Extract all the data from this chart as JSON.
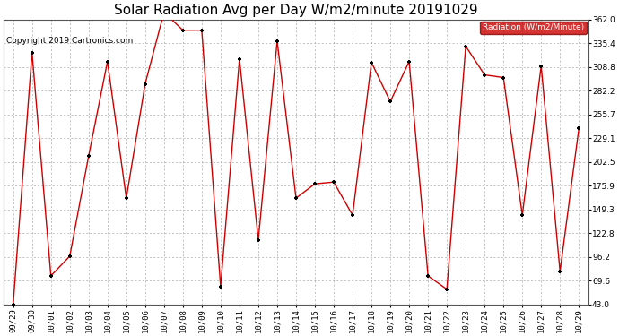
{
  "title": "Solar Radiation Avg per Day W/m2/minute 20191029",
  "copyright": "Copyright 2019 Cartronics.com",
  "legend_label": "Radiation (W/m2/Minute)",
  "labels": [
    "09/29",
    "09/30",
    "10/01",
    "10/02",
    "10/03",
    "10/04",
    "10/05",
    "10/06",
    "10/07",
    "10/08",
    "10/09",
    "10/10",
    "10/11",
    "10/12",
    "10/13",
    "10/14",
    "10/15",
    "10/16",
    "10/17",
    "10/18",
    "10/19",
    "10/20",
    "10/21",
    "10/22",
    "10/23",
    "10/24",
    "10/25",
    "10/26",
    "10/27",
    "10/28",
    "10/29"
  ],
  "values": [
    43.0,
    325.0,
    75.0,
    97.0,
    209.0,
    315.0,
    162.0,
    290.0,
    370.0,
    350.0,
    350.0,
    63.0,
    318.0,
    115.0,
    338.0,
    162.0,
    178.0,
    180.0,
    143.0,
    314.0,
    270.0,
    315.0,
    75.0,
    60.0,
    332.0,
    300.0,
    297.0,
    143.0,
    310.0,
    80.0,
    240.0
  ],
  "line_color": "#cc0000",
  "marker_color": "#000000",
  "background_color": "#ffffff",
  "grid_color": "#aaaaaa",
  "ylim": [
    43.0,
    362.0
  ],
  "yticks": [
    43.0,
    69.6,
    96.2,
    122.8,
    149.3,
    175.9,
    202.5,
    229.1,
    255.7,
    282.2,
    308.8,
    335.4,
    362.0
  ],
  "title_fontsize": 11,
  "tick_fontsize": 6.5,
  "legend_bg": "#cc0000",
  "legend_text_color": "#ffffff"
}
